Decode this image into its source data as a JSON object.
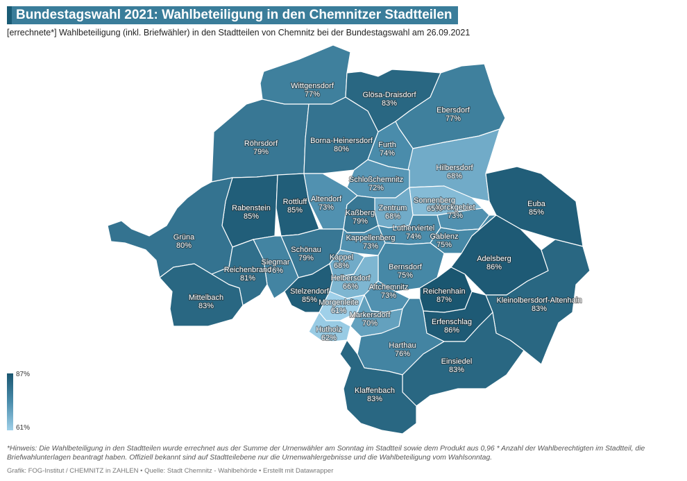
{
  "title": "Bundestagswahl 2021: Wahlbeteiligung in den Chemnitzer Stadtteilen",
  "subtitle": "[errechnete*] Wahlbeteiligung (inkl. Briefwähler) in den Stadtteilen von Chemnitz bei der Bundestagswahl am 26.09.2021",
  "legend": {
    "max_label": "87%",
    "min_label": "61%",
    "max": 87,
    "min": 61,
    "color_max": "#1a5670",
    "color_min": "#9fd0e9"
  },
  "districts": [
    {
      "name": "Wittgensdorf",
      "value": "77%"
    },
    {
      "name": "Glösa-Draisdorf",
      "value": "83%"
    },
    {
      "name": "Ebersdorf",
      "value": "77%"
    },
    {
      "name": "Röhrsdorf",
      "value": "79%"
    },
    {
      "name": "Borna-Heinersdorf",
      "value": "80%"
    },
    {
      "name": "Furth",
      "value": "74%"
    },
    {
      "name": "Hilbersdorf",
      "value": "68%"
    },
    {
      "name": "Schloßchemnitz",
      "value": "72%"
    },
    {
      "name": "Rabenstein",
      "value": "85%"
    },
    {
      "name": "Rottluff",
      "value": "85%"
    },
    {
      "name": "Altendorf",
      "value": "73%"
    },
    {
      "name": "Euba",
      "value": "85%"
    },
    {
      "name": "Sonnenberg",
      "value": "65%"
    },
    {
      "name": "Zentrum",
      "value": "68%"
    },
    {
      "name": "Yorckgebiet",
      "value": "73%"
    },
    {
      "name": "Kaßberg",
      "value": "79%"
    },
    {
      "name": "Grüna",
      "value": "80%"
    },
    {
      "name": "Lutherviertel",
      "value": "74%"
    },
    {
      "name": "Kappellenberg",
      "value": "73%"
    },
    {
      "name": "Gablenz",
      "value": "75%"
    },
    {
      "name": "Schönau",
      "value": "79%"
    },
    {
      "name": "Adelsberg",
      "value": "86%"
    },
    {
      "name": "Kappel",
      "value": "68%"
    },
    {
      "name": "Siegmar",
      "value": "76%"
    },
    {
      "name": "Reichenbrand",
      "value": "81%"
    },
    {
      "name": "Bernsdorf",
      "value": "75%"
    },
    {
      "name": "Helbersdorf",
      "value": "66%"
    },
    {
      "name": "Altchemnitz",
      "value": "73%"
    },
    {
      "name": "Reichenhain",
      "value": "87%"
    },
    {
      "name": "Stelzendorf",
      "value": "85%"
    },
    {
      "name": "Kleinolbersdorf-Altenhain",
      "value": "83%"
    },
    {
      "name": "Mittelbach",
      "value": "83%"
    },
    {
      "name": "Morgenleite",
      "value": "61%"
    },
    {
      "name": "Markersdorf",
      "value": "70%"
    },
    {
      "name": "Erfenschlag",
      "value": "86%"
    },
    {
      "name": "Hutholz",
      "value": "62%"
    },
    {
      "name": "Harthau",
      "value": "76%"
    },
    {
      "name": "Einsiedel",
      "value": "83%"
    },
    {
      "name": "Klaffenbach",
      "value": "83%"
    }
  ],
  "note": "*Hinweis: Die Wahlbeteiligung in den Stadtteilen wurde errechnet aus der Summe der Urnenwähler am Sonntag im Stadtteil sowie dem Produkt aus 0,96 * Anzahl der Wahlberechtigten im Stadtteil, die Briefwahlunterlagen beantragt haben. Offiziell bekannt sind auf Stadtteilebene nur die Urnenwahlergebnisse und die Wahlbeteiligung vom Wahlsonntag.",
  "source": "Grafik: FOG-Institut / CHEMNITZ in ZAHLEN • Quelle: Stadt Chemnitz - Wahlbehörde • Erstellt mit Datawrapper"
}
